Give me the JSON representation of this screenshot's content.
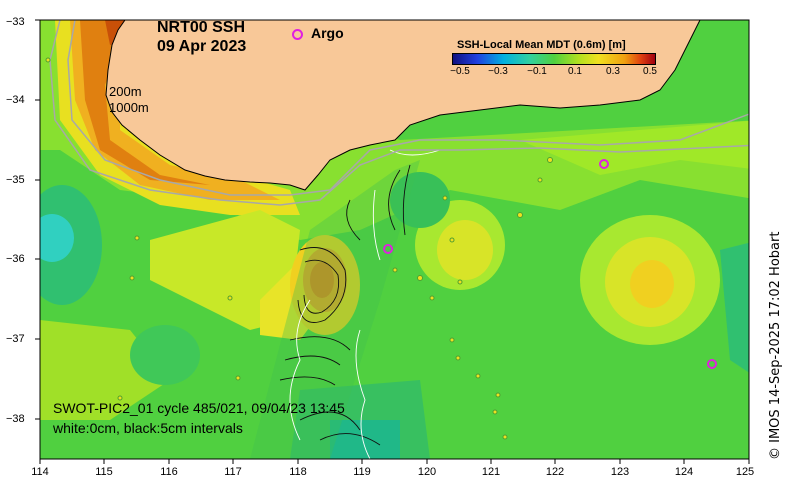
{
  "title": {
    "product": "NRT00 SSH",
    "date": "09 Apr 2023"
  },
  "legend": {
    "argo_label": "Argo",
    "argo_color": "#e020e0"
  },
  "depth_labels": [
    "200m",
    "1000m"
  ],
  "colorbar": {
    "title": "SSH-Local Mean MDT (0.6m) [m]",
    "ticks": [
      "−0.5",
      "−0.3",
      "−0.1",
      "0.1",
      "0.3",
      "0.5"
    ],
    "range": [
      -0.5,
      0.5
    ]
  },
  "swot": {
    "pass": "SWOT-PIC2_01 cycle 485/021, 09/04/23 13:45",
    "contours": "white:0cm, black:5cm intervals"
  },
  "credit": "© IMOS 14-Sep-2025 17:02 Hobart",
  "axes": {
    "x_ticks": [
      "114",
      "115",
      "116",
      "117",
      "118",
      "119",
      "120",
      "121",
      "122",
      "123",
      "124",
      "125"
    ],
    "y_ticks": [
      "−33",
      "−34",
      "−35",
      "−36",
      "−37",
      "−38"
    ],
    "xlim": [
      114,
      125
    ],
    "ylim": [
      -38.5,
      -33
    ]
  },
  "colors": {
    "land": "#f8c898",
    "background": "#48d048"
  }
}
